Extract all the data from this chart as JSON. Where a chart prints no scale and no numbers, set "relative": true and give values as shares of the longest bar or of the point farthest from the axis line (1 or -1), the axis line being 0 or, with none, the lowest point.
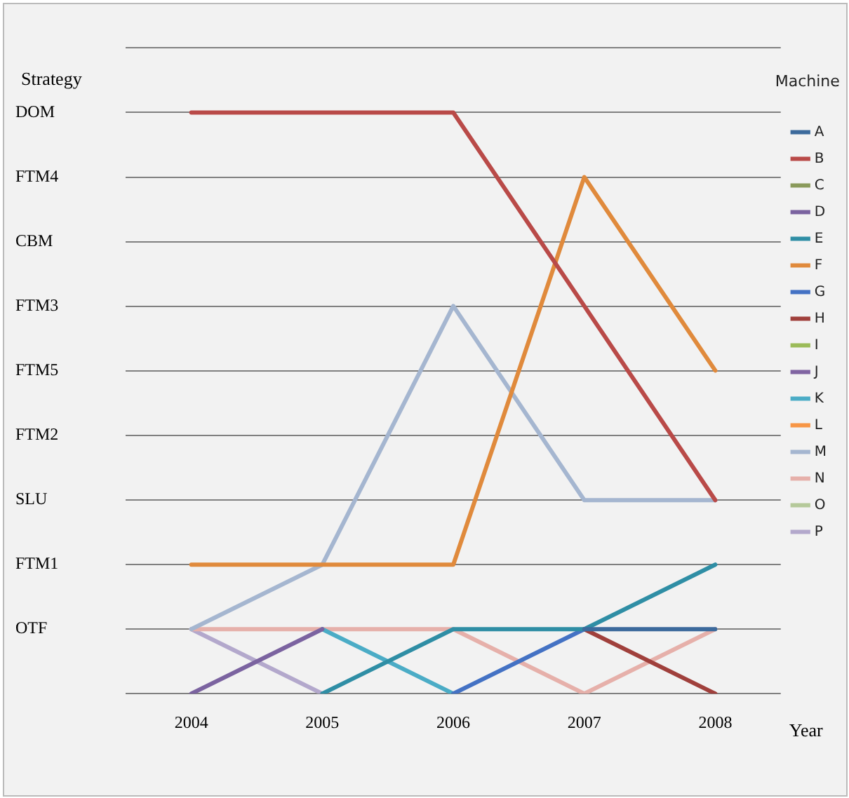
{
  "chart_data": {
    "type": "line",
    "relative": true,
    "xlabel": "Year",
    "ylabel": "Strategy",
    "legend_title": "Machine",
    "legend": "right",
    "grid": "y",
    "marker": "none",
    "line_style": "solid",
    "categories": [
      "2004",
      "2005",
      "2006",
      "2007",
      "2008"
    ],
    "y_categories": [
      null,
      "DOM",
      "FTM4",
      "CBM",
      "FTM3",
      "FTM5",
      "FTM2",
      "SLU",
      "FTM1",
      "OTF",
      null
    ],
    "series": [
      {
        "name": "A",
        "color": "#3c6a9c",
        "values": [
          null,
          null,
          null,
          0.111,
          0.111
        ]
      },
      {
        "name": "B",
        "color": "#b94a48",
        "values": [
          1,
          1,
          1,
          0.667,
          0.333
        ]
      },
      {
        "name": "C",
        "color": "#8a9a5b",
        "values": [
          null,
          null,
          null,
          null,
          null
        ]
      },
      {
        "name": "D",
        "color": "#7b63a0",
        "values": [
          0,
          0.111,
          null,
          null,
          null
        ]
      },
      {
        "name": "E",
        "color": "#2f8ea5",
        "values": [
          null,
          0,
          0.111,
          0.111,
          0.222
        ]
      },
      {
        "name": "F",
        "color": "#e08a3c",
        "values": [
          0.222,
          0.222,
          0.222,
          0.889,
          0.556
        ]
      },
      {
        "name": "G",
        "color": "#4472c4",
        "values": [
          null,
          null,
          0,
          0.111,
          null
        ]
      },
      {
        "name": "H",
        "color": "#a0403c",
        "values": [
          null,
          null,
          null,
          0.111,
          0
        ]
      },
      {
        "name": "I",
        "color": "#9bbb59",
        "values": [
          null,
          null,
          null,
          null,
          null
        ]
      },
      {
        "name": "J",
        "color": "#8064a2",
        "values": [
          null,
          null,
          null,
          null,
          null
        ]
      },
      {
        "name": "K",
        "color": "#4bacc6",
        "values": [
          null,
          0.111,
          0,
          null,
          null
        ]
      },
      {
        "name": "L",
        "color": "#f79646",
        "values": [
          null,
          null,
          null,
          null,
          null
        ]
      },
      {
        "name": "M",
        "color": "#a5b6d0",
        "values": [
          0.111,
          0.222,
          0.667,
          0.333,
          0.333
        ]
      },
      {
        "name": "N",
        "color": "#e6b0aa",
        "values": [
          0.111,
          0.111,
          0.111,
          0,
          0.111
        ]
      },
      {
        "name": "O",
        "color": "#b5c99a",
        "values": [
          null,
          null,
          null,
          null,
          null
        ]
      },
      {
        "name": "P",
        "color": "#b3a8cc",
        "values": [
          0.111,
          0,
          null,
          null,
          null
        ]
      }
    ]
  }
}
